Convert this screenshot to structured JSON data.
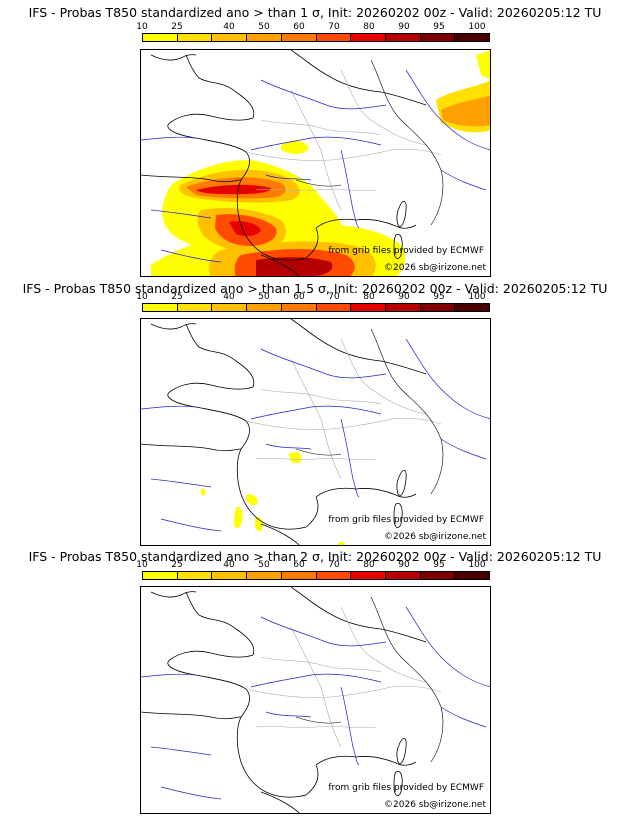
{
  "panels": [
    {
      "title": "IFS - Probas T850  standardized ano > than 1 σ, Init: 20260202 00z - Valid: 20260205:12 TU",
      "level": "1 σ",
      "credit_source": "from grib files provided by ECMWF",
      "credit_copyright": "©2026 sb@irizone.net"
    },
    {
      "title": "IFS - Probas T850  standardized ano > than 1.5 σ, Init: 20260202 00z - Valid: 20260205:12 TU",
      "level": "1.5 σ",
      "credit_source": "from grib files provided by ECMWF",
      "credit_copyright": "©2026 sb@irizone.net"
    },
    {
      "title": "IFS - Probas T850  standardized ano > than 2 σ, Init: 20260202 00z - Valid: 20260205:12 TU",
      "level": "2 σ",
      "credit_source": "from grib files provided by ECMWF",
      "credit_copyright": "©2026 sb@irizone.net"
    }
  ],
  "colorbar": {
    "ticks": [
      "10",
      "25",
      "40",
      "50",
      "60",
      "70",
      "80",
      "90",
      "95",
      "100"
    ],
    "colors": [
      "#ffff00",
      "#ffe000",
      "#ffc000",
      "#ffa000",
      "#ff7a00",
      "#ff4a00",
      "#e60000",
      "#b40000",
      "#7d0000",
      "#4a0000"
    ]
  },
  "map_colors": {
    "coast": "#000000",
    "rivers": "#2222cc",
    "borders": "#aaaaaa"
  }
}
